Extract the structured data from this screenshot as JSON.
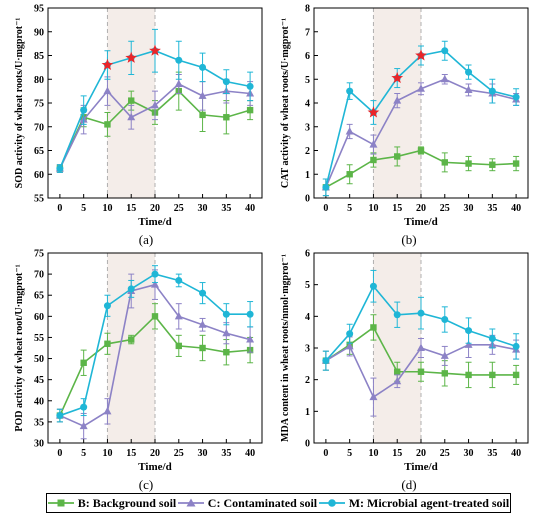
{
  "colors": {
    "B": "#5cb548",
    "C": "#8c82c6",
    "M": "#1fb6d6",
    "star": "#e8262a",
    "shade": "#f4ede9",
    "dashed": "#b0b0b0"
  },
  "legend": [
    {
      "key": "B",
      "label": "B: Background soil",
      "marker": "square"
    },
    {
      "key": "C",
      "label": "C: Contaminated soil",
      "marker": "triangle"
    },
    {
      "key": "M",
      "label": "M: Microbial agent-treated soil",
      "marker": "circle"
    }
  ],
  "chart_data": [
    {
      "type": "line",
      "panel_label": "(a)",
      "xlabel": "Time/d",
      "ylabel": "SOD activity of wheat roots/U·mgprot⁻¹",
      "x": [
        0,
        5,
        10,
        15,
        20,
        25,
        30,
        35,
        40
      ],
      "xlim": [
        -2.5,
        42.5
      ],
      "ylim": [
        55,
        95
      ],
      "yticks": [
        55,
        60,
        65,
        70,
        75,
        80,
        85,
        90,
        95
      ],
      "shaded_range": [
        10,
        20
      ],
      "series": [
        {
          "key": "B",
          "values": [
            61.2,
            72.0,
            70.5,
            75.5,
            73.0,
            77.5,
            72.5,
            72.0,
            73.5
          ],
          "errors": [
            0.8,
            2.0,
            2.5,
            2.0,
            2.5,
            4.0,
            3.5,
            3.5,
            2.0
          ]
        },
        {
          "key": "C",
          "values": [
            61.2,
            71.5,
            77.5,
            72.0,
            74.5,
            79.0,
            76.5,
            77.5,
            77.0
          ],
          "errors": [
            0.8,
            3.0,
            3.0,
            2.5,
            3.0,
            2.0,
            3.0,
            2.5,
            2.5
          ]
        },
        {
          "key": "M",
          "values": [
            61.2,
            73.5,
            83.0,
            84.5,
            86.0,
            84.0,
            82.5,
            79.5,
            78.5
          ],
          "errors": [
            0.8,
            3.0,
            3.0,
            3.5,
            4.5,
            4.0,
            3.0,
            2.5,
            3.0
          ]
        }
      ],
      "stars": [
        {
          "x": 10,
          "y": 83.0
        },
        {
          "x": 15,
          "y": 84.5
        },
        {
          "x": 20,
          "y": 86.0
        }
      ]
    },
    {
      "type": "line",
      "panel_label": "(b)",
      "xlabel": "Time/d",
      "ylabel": "CAT activity of wheat roots/U·mgprot⁻¹",
      "x": [
        0,
        5,
        10,
        15,
        20,
        25,
        30,
        35,
        40
      ],
      "xlim": [
        -2.5,
        42.5
      ],
      "ylim": [
        0,
        8
      ],
      "yticks": [
        0,
        1,
        2,
        3,
        4,
        5,
        6,
        7,
        8
      ],
      "shaded_range": [
        10,
        20
      ],
      "series": [
        {
          "key": "B",
          "values": [
            0.45,
            1.0,
            1.6,
            1.75,
            2.0,
            1.5,
            1.45,
            1.4,
            1.45
          ],
          "errors": [
            0.35,
            0.4,
            0.3,
            0.4,
            0.15,
            0.4,
            0.3,
            0.25,
            0.3
          ]
        },
        {
          "key": "C",
          "values": [
            0.45,
            2.8,
            2.25,
            4.1,
            4.6,
            5.0,
            4.55,
            4.4,
            4.15
          ],
          "errors": [
            0.35,
            0.3,
            0.4,
            0.3,
            0.25,
            0.2,
            0.25,
            0.4,
            0.25
          ]
        },
        {
          "key": "M",
          "values": [
            0.45,
            4.5,
            3.6,
            5.05,
            6.0,
            6.2,
            5.3,
            4.5,
            4.25
          ],
          "errors": [
            0.35,
            0.35,
            0.5,
            0.4,
            0.4,
            0.4,
            0.3,
            0.5,
            0.35
          ]
        }
      ],
      "stars": [
        {
          "x": 10,
          "y": 3.6
        },
        {
          "x": 15,
          "y": 5.05
        },
        {
          "x": 20,
          "y": 6.0
        }
      ]
    },
    {
      "type": "line",
      "panel_label": "(c)",
      "xlabel": "Time/d",
      "ylabel": "POD activity of wheat root/U·mgprot⁻¹",
      "x": [
        0,
        5,
        10,
        15,
        20,
        25,
        30,
        35,
        40
      ],
      "xlim": [
        -2.5,
        42.5
      ],
      "ylim": [
        30,
        75
      ],
      "yticks": [
        30,
        35,
        40,
        45,
        50,
        55,
        60,
        65,
        70,
        75
      ],
      "shaded_range": [
        10,
        20
      ],
      "series": [
        {
          "key": "B",
          "values": [
            36.5,
            49.0,
            53.5,
            54.5,
            60.0,
            53.0,
            52.5,
            51.5,
            52.0
          ],
          "errors": [
            1.5,
            3.0,
            2.5,
            1.0,
            3.0,
            2.5,
            3.0,
            3.0,
            3.0
          ]
        },
        {
          "key": "C",
          "values": [
            36.5,
            34.0,
            37.5,
            66.0,
            67.5,
            60.0,
            58.0,
            56.0,
            54.5
          ],
          "errors": [
            1.5,
            3.0,
            3.0,
            4.0,
            3.5,
            3.0,
            1.5,
            2.5,
            3.0
          ]
        },
        {
          "key": "M",
          "values": [
            36.5,
            38.5,
            62.5,
            66.5,
            70.0,
            68.5,
            65.5,
            60.5,
            60.5
          ],
          "errors": [
            1.5,
            2.0,
            2.5,
            2.0,
            2.0,
            1.5,
            2.5,
            2.5,
            3.0
          ]
        }
      ],
      "stars": []
    },
    {
      "type": "line",
      "panel_label": "(d)",
      "xlabel": "Time/d",
      "ylabel": "MDA content in wheat roots/nmol·mgprot⁻¹",
      "x": [
        0,
        5,
        10,
        15,
        20,
        25,
        30,
        35,
        40
      ],
      "xlim": [
        -2.5,
        42.5
      ],
      "ylim": [
        0,
        6
      ],
      "yticks": [
        0,
        1,
        2,
        3,
        4,
        5,
        6
      ],
      "shaded_range": [
        10,
        20
      ],
      "series": [
        {
          "key": "B",
          "values": [
            2.6,
            3.1,
            3.65,
            2.25,
            2.25,
            2.2,
            2.15,
            2.15,
            2.15
          ],
          "errors": [
            0.3,
            0.3,
            0.4,
            0.3,
            0.3,
            0.4,
            0.4,
            0.4,
            0.3
          ]
        },
        {
          "key": "C",
          "values": [
            2.6,
            3.05,
            1.45,
            1.95,
            3.0,
            2.75,
            3.1,
            3.1,
            2.95
          ],
          "errors": [
            0.3,
            0.3,
            0.6,
            0.2,
            0.3,
            0.3,
            0.4,
            0.3,
            0.3
          ]
        },
        {
          "key": "M",
          "values": [
            2.6,
            3.45,
            4.95,
            4.05,
            4.1,
            3.9,
            3.55,
            3.3,
            3.05
          ],
          "errors": [
            0.3,
            0.3,
            0.5,
            0.4,
            0.5,
            0.4,
            0.4,
            0.3,
            0.4
          ]
        }
      ],
      "stars": []
    }
  ]
}
